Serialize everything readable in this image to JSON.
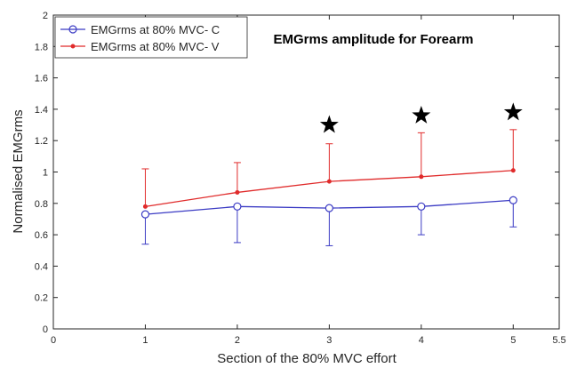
{
  "chart_data": {
    "type": "line",
    "title": "EMGrms amplitude for Forearm",
    "xlabel": "Section of the 80% MVC effort",
    "ylabel": "Normalised EMGrms",
    "xlim": [
      0,
      5.5
    ],
    "ylim": [
      0,
      2
    ],
    "x_ticks": [
      0,
      1,
      2,
      3,
      4,
      5,
      5.5
    ],
    "x_tick_labels": [
      "0",
      "1",
      "2",
      "3",
      "4",
      "5",
      "5.5"
    ],
    "y_ticks": [
      0,
      0.2,
      0.4,
      0.6,
      0.8,
      1,
      1.2,
      1.4,
      1.6,
      1.8,
      2
    ],
    "y_tick_labels": [
      "0",
      "0.2",
      "0.4",
      "0.6",
      "0.8",
      "1",
      "1.2",
      "1.4",
      "1.6",
      "1.8",
      "2"
    ],
    "grid": false,
    "legend_position": "top-left",
    "x": [
      1,
      2,
      3,
      4,
      5
    ],
    "series": [
      {
        "name": "EMGrms at 80% MVC- C",
        "values": [
          0.73,
          0.78,
          0.77,
          0.78,
          0.82
        ],
        "error_minus": [
          0.19,
          0.23,
          0.24,
          0.18,
          0.17
        ],
        "error_plus": [
          0,
          0,
          0,
          0,
          0
        ],
        "color": "#3b3bc4",
        "marker": "circle"
      },
      {
        "name": "EMGrms at 80% MVC- V",
        "values": [
          0.78,
          0.87,
          0.94,
          0.97,
          1.01
        ],
        "error_minus": [
          0,
          0,
          0,
          0,
          0
        ],
        "error_plus": [
          0.24,
          0.19,
          0.24,
          0.28,
          0.26
        ],
        "color": "#e02b2b",
        "marker": "dot"
      }
    ],
    "annotations": [
      {
        "type": "star",
        "x": 3,
        "y": 1.3
      },
      {
        "type": "star",
        "x": 4,
        "y": 1.36
      },
      {
        "type": "star",
        "x": 5,
        "y": 1.38
      }
    ]
  }
}
